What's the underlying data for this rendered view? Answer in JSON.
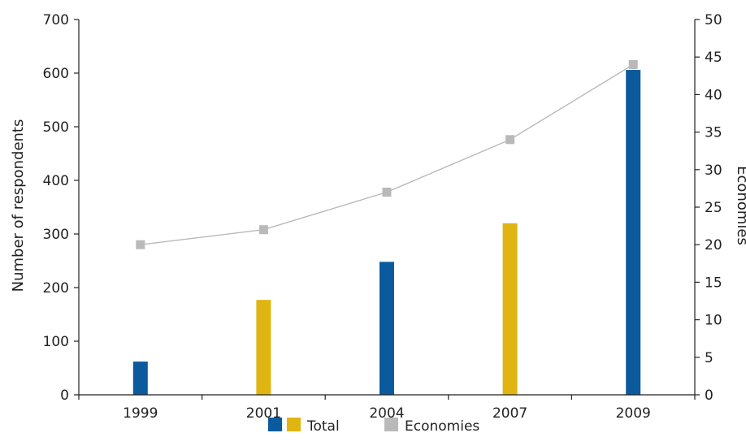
{
  "chart_data": {
    "type": "bar",
    "categories": [
      "1999",
      "2001",
      "2004",
      "2007",
      "2009"
    ],
    "series": [
      {
        "name": "Total",
        "axis": "left",
        "kind": "bar",
        "values": [
          62,
          177,
          248,
          320,
          606
        ]
      },
      {
        "name": "Economies",
        "axis": "right",
        "kind": "line",
        "values": [
          20,
          22,
          27,
          34,
          44
        ]
      }
    ],
    "bar_colors": [
      "#0b5a9e",
      "#e0b511",
      "#0b5a9e",
      "#e0b511",
      "#0b5a9e"
    ],
    "line_color": "#b9b9b9",
    "axis_color": "#222222",
    "ylabel_left": "Number of respondents",
    "ylabel_right": "Economies",
    "ylim_left": [
      0,
      700
    ],
    "yticks_left": [
      0,
      100,
      200,
      300,
      400,
      500,
      600,
      700
    ],
    "ylim_right": [
      0,
      50
    ],
    "yticks_right": [
      0,
      5,
      10,
      15,
      20,
      25,
      30,
      35,
      40,
      45,
      50
    ],
    "grid": false,
    "legend": {
      "position": "bottom",
      "items": [
        {
          "label": "Total",
          "swatches": [
            "#0b5a9e",
            "#e0b511"
          ]
        },
        {
          "label": "Economies",
          "swatches": [
            "#b9b9b9"
          ]
        }
      ]
    }
  }
}
